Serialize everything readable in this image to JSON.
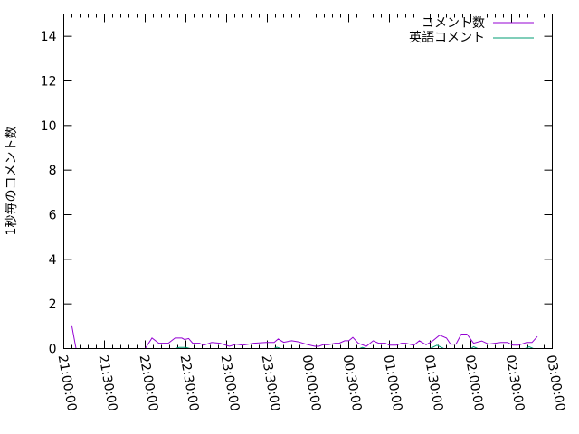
{
  "chart_data": {
    "type": "line",
    "title": "",
    "xlabel": "",
    "ylabel": "1秒毎のコメント数",
    "ylim": [
      0,
      15
    ],
    "yticks": [
      "0",
      "2",
      "4",
      "6",
      "8",
      "10",
      "12",
      "14"
    ],
    "xlim": [
      "21:00:00",
      "03:00:00"
    ],
    "xticks": [
      "21:00:00",
      "21:30:00",
      "22:00:00",
      "22:30:00",
      "23:00:00",
      "23:30:00",
      "00:00:00",
      "00:30:00",
      "01:00:00",
      "01:30:00",
      "02:00:00",
      "02:30:00",
      "03:00:00"
    ],
    "grid": false,
    "legend_position": "top-right",
    "series": [
      {
        "name": "コメント数",
        "color": "#9400d3",
        "x": [
          "21:06",
          "21:09",
          "21:57",
          "22:00",
          "22:05",
          "22:10",
          "22:17",
          "22:22",
          "22:27",
          "22:29",
          "22:32",
          "22:35",
          "22:40",
          "22:43",
          "22:49",
          "22:55",
          "23:02",
          "23:07",
          "23:12",
          "23:20",
          "23:29",
          "23:35",
          "23:38",
          "23:42",
          "23:48",
          "23:53",
          "00:00",
          "00:05",
          "00:08",
          "00:11",
          "00:15",
          "00:20",
          "00:23",
          "00:27",
          "00:30",
          "00:33",
          "00:37",
          "00:43",
          "00:48",
          "00:52",
          "00:57",
          "01:00",
          "01:05",
          "01:09",
          "01:12",
          "01:18",
          "01:22",
          "01:27",
          "01:32",
          "01:37",
          "01:42",
          "01:45",
          "01:49",
          "01:53",
          "01:57",
          "02:02",
          "02:08",
          "02:13",
          "02:22",
          "02:27",
          "02:31",
          "02:35",
          "02:41",
          "02:45",
          "02:49"
        ],
        "values": [
          1.0,
          0,
          0,
          0,
          0.47,
          0.24,
          0.24,
          0.47,
          0.47,
          0.4,
          0.45,
          0.24,
          0.24,
          0.15,
          0.27,
          0.24,
          0.1,
          0.2,
          0.15,
          0.24,
          0.27,
          0.27,
          0.43,
          0.28,
          0.35,
          0.3,
          0.17,
          0.1,
          0.1,
          0.17,
          0.17,
          0.24,
          0.24,
          0.35,
          0.35,
          0.5,
          0.24,
          0.1,
          0.35,
          0.24,
          0.24,
          0.15,
          0.15,
          0.24,
          0.24,
          0.15,
          0.35,
          0.17,
          0.35,
          0.6,
          0.47,
          0.2,
          0.2,
          0.65,
          0.65,
          0.24,
          0.34,
          0.2,
          0.27,
          0.27,
          0.15,
          0.15,
          0.27,
          0.27,
          0.54
        ]
      },
      {
        "name": "英語コメント",
        "color": "#009e73",
        "x": [
          "22:00",
          "22:22",
          "22:25",
          "22:30",
          "22:33",
          "23:35",
          "23:37",
          "23:40",
          "00:38",
          "00:40",
          "00:43",
          "01:30",
          "01:35",
          "01:40",
          "02:00",
          "02:02",
          "02:05",
          "02:40",
          "02:43",
          "02:46",
          "02:49"
        ],
        "values": [
          0,
          0,
          0.05,
          0.05,
          0,
          0,
          0.06,
          0,
          0,
          0.05,
          0,
          0,
          0.15,
          0,
          0,
          0.08,
          0,
          0,
          0.08,
          0,
          0
        ]
      }
    ]
  }
}
